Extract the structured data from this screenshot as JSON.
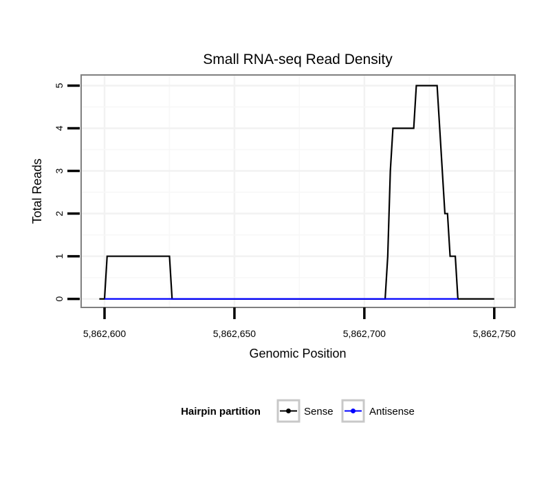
{
  "chart_data": {
    "type": "line",
    "title": "Small RNA-seq Read Density",
    "xlabel": "Genomic Position",
    "ylabel": "Total Reads",
    "xlim": [
      5862591,
      5862758
    ],
    "ylim": [
      -0.2,
      5.25
    ],
    "x_ticks": [
      5862600,
      5862650,
      5862700,
      5862750
    ],
    "x_tick_labels": [
      "5,862,600",
      "5,862,650",
      "5,862,700",
      "5,862,750"
    ],
    "y_ticks": [
      0,
      1,
      2,
      3,
      4,
      5
    ],
    "y_tick_labels": [
      "0",
      "1",
      "2",
      "3",
      "4",
      "5"
    ],
    "grid": true,
    "legend": {
      "title": "Hairpin partition",
      "placement": "bottom",
      "entries": [
        "Sense",
        "Antisense"
      ]
    },
    "series": [
      {
        "name": "Sense",
        "color": "#000000",
        "x": [
          5862598,
          5862600,
          5862601,
          5862625,
          5862626,
          5862708,
          5862709,
          5862710,
          5862711,
          5862719,
          5862720,
          5862728,
          5862729,
          5862730,
          5862731,
          5862732,
          5862733,
          5862734,
          5862735,
          5862736,
          5862750
        ],
        "y": [
          0,
          0,
          1,
          1,
          0,
          0,
          1,
          3,
          4,
          4,
          5,
          5,
          4,
          3,
          2,
          2,
          1,
          1,
          1,
          0,
          0
        ]
      },
      {
        "name": "Antisense",
        "color": "#0000ff",
        "x": [
          5862600,
          5862625,
          5862710,
          5862736
        ],
        "y": [
          0,
          0,
          0,
          0
        ]
      }
    ]
  }
}
